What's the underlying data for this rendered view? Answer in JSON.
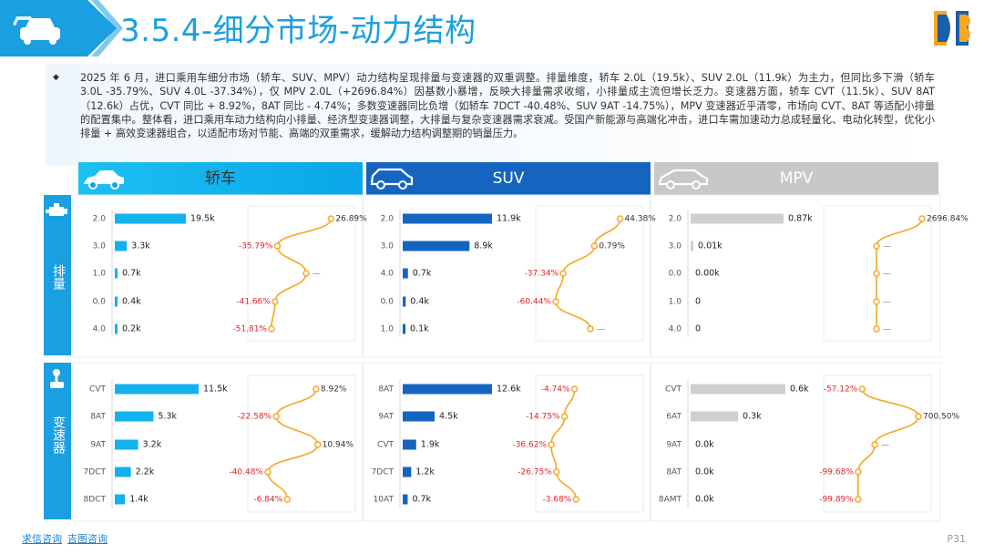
{
  "header": {
    "title": "3.5.4-细分市场-动力结构",
    "accent_color": "#1a9fe0"
  },
  "summary": "2025 年 6 月，进口乘用车细分市场（轿车、SUV、MPV）动力结构呈现排量与变速器的双重调整。排量维度，轿车 2.0L（19.5k）、SUV 2.0L（11.9k）为主力，但同比多下滑（轿车 3.0L -35.79%、SUV 4.0L -37.34%），仅 MPV 2.0L（+2696.84%）因基数小暴增，反映大排量需求收缩，小排量成主流但增长乏力。变速器方面，轿车 CVT（11.5k）、SUV 8AT（12.6k）占优，CVT 同比 + 8.92%，8AT 同比 - 4.74%；多数变速器同比负增（如轿车 7DCT -40.48%、SUV 9AT -14.75%），MPV 变速器近乎清零，市场向 CVT、8AT 等适配小排量的配置集中。整体看，进口乘用车动力结构向小排量、经济型变速器调整，大排量与复杂变速器需求衰减。受国产新能源与高端化冲击，进口车需加速动力总成轻量化、电动化转型，优化小排量 + 高效变速器组合，以适配市场对节能、高端的双重需求，缓解动力结构调整期的销量压力。",
  "columns": [
    {
      "label": "轿车",
      "color": "#12b2ef",
      "text_color": "#333333"
    },
    {
      "label": "SUV",
      "color": "#1565c0",
      "text_color": "#ffffff"
    },
    {
      "label": "MPV",
      "color": "#c8c8c8",
      "text_color": "#ffffff"
    }
  ],
  "sections": {
    "displacement": "排量",
    "transmission": "变速器"
  },
  "growth_line_color": "#f5a623",
  "negative_color": "#e0242b",
  "chart_data": [
    {
      "type": "bar",
      "segment": "轿车",
      "dimension": "排量",
      "categories": [
        "2.0",
        "3.0",
        "1.0",
        "0.0",
        "4.0"
      ],
      "values": [
        19.5,
        3.3,
        0.7,
        0.4,
        0.2
      ],
      "value_labels": [
        "19.5k",
        "3.3k",
        "0.7k",
        "0.4k",
        "0.2k"
      ],
      "growth": [
        26.89,
        -35.79,
        null,
        -41.66,
        -51.81
      ],
      "growth_labels": [
        "26.89%",
        "-35.79%",
        "—",
        "-41.66%",
        "-51.81%"
      ]
    },
    {
      "type": "bar",
      "segment": "SUV",
      "dimension": "排量",
      "categories": [
        "2.0",
        "3.0",
        "4.0",
        "0.0",
        "1.0"
      ],
      "values": [
        11.9,
        8.9,
        0.7,
        0.4,
        0.1
      ],
      "value_labels": [
        "11.9k",
        "8.9k",
        "0.7k",
        "0.4k",
        "0.1k"
      ],
      "growth": [
        44.38,
        0.79,
        -37.34,
        -60.44,
        null
      ],
      "growth_labels": [
        "44.38%",
        "0.79%",
        "-37.34%",
        "-60.44%",
        "—"
      ]
    },
    {
      "type": "bar",
      "segment": "MPV",
      "dimension": "排量",
      "categories": [
        "2.0",
        "3.0",
        "0.0",
        "1.0",
        "4.0"
      ],
      "values": [
        0.87,
        0.01,
        0,
        0,
        0
      ],
      "value_labels": [
        "0.87k",
        "0.01k",
        "0.00k",
        "0",
        "0"
      ],
      "growth": [
        2696.84,
        null,
        null,
        null,
        null
      ],
      "growth_labels": [
        "2696.84%",
        "—",
        "—",
        "—",
        "—"
      ]
    },
    {
      "type": "bar",
      "segment": "轿车",
      "dimension": "变速器",
      "categories": [
        "CVT",
        "8AT",
        "9AT",
        "7DCT",
        "8DCT"
      ],
      "values": [
        11.5,
        5.3,
        3.2,
        2.2,
        1.4
      ],
      "value_labels": [
        "11.5k",
        "5.3k",
        "3.2k",
        "2.2k",
        "1.4k"
      ],
      "growth": [
        8.92,
        -22.58,
        10.94,
        -40.48,
        -6.84
      ],
      "growth_labels": [
        "8.92%",
        "-22.58%",
        "10.94%",
        "-40.48%",
        "-6.84%"
      ]
    },
    {
      "type": "bar",
      "segment": "SUV",
      "dimension": "变速器",
      "categories": [
        "8AT",
        "9AT",
        "CVT",
        "7DCT",
        "10AT"
      ],
      "values": [
        12.6,
        4.5,
        1.9,
        1.2,
        0.7
      ],
      "value_labels": [
        "12.6k",
        "4.5k",
        "1.9k",
        "1.2k",
        "0.7k"
      ],
      "growth": [
        -4.74,
        -14.75,
        -36.62,
        -26.75,
        -3.68
      ],
      "growth_labels": [
        "-4.74%",
        "-14.75%",
        "-36.62%",
        "-26.75%",
        "-3.68%"
      ]
    },
    {
      "type": "bar",
      "segment": "MPV",
      "dimension": "变速器",
      "categories": [
        "CVT",
        "6AT",
        "9AT",
        "8AT",
        "8AMT"
      ],
      "values": [
        0.6,
        0.3,
        0.0,
        0.0,
        0.0
      ],
      "value_labels": [
        "0.6k",
        "0.3k",
        "0.0k",
        "0.0k",
        "0.0k"
      ],
      "growth": [
        -57.12,
        700.5,
        null,
        -99.68,
        -99.89
      ],
      "growth_labels": [
        "-57.12%",
        "700.50%",
        "—",
        "-99.68%",
        "-99.89%"
      ]
    }
  ],
  "footer": {
    "link1": "求信咨询",
    "link2": "吉图咨询",
    "page": "P31"
  }
}
